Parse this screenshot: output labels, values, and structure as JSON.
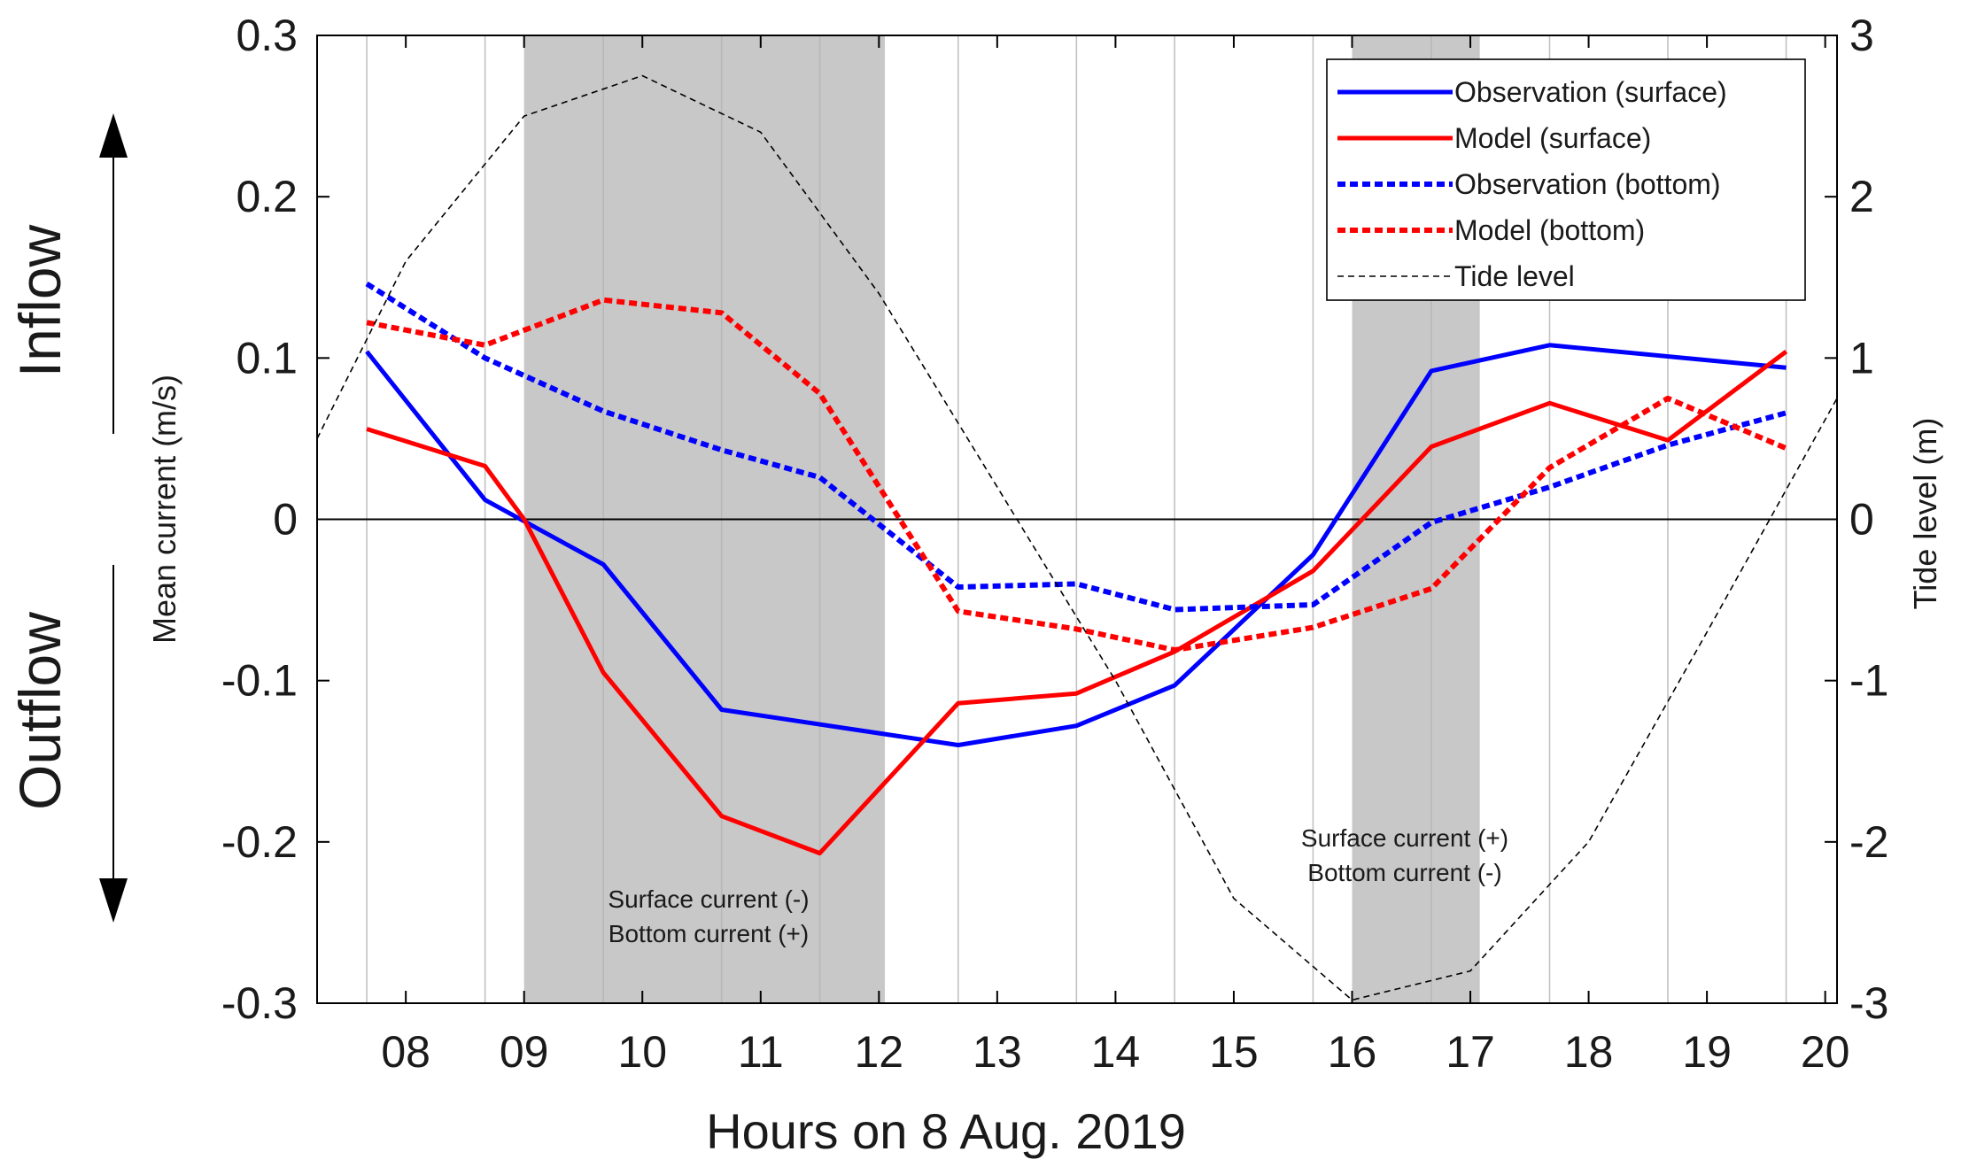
{
  "chart_data": {
    "type": "line",
    "xlabel": "Hours on 8 Aug. 2019",
    "ylabel": "Mean current (m/s)",
    "y2label": "Tide level (m)",
    "xlim": [
      7.25,
      20.1
    ],
    "ylim": [
      -0.3,
      0.3
    ],
    "y2lim": [
      -3,
      3
    ],
    "xticks": [
      8,
      9,
      10,
      11,
      12,
      13,
      14,
      15,
      16,
      17,
      18,
      19,
      20
    ],
    "xtick_labels": [
      "08",
      "09",
      "10",
      "11",
      "12",
      "13",
      "14",
      "15",
      "16",
      "17",
      "18",
      "19",
      "20"
    ],
    "yticks": [
      -0.3,
      -0.2,
      -0.1,
      0,
      0.1,
      0.2,
      0.3
    ],
    "ytick_labels": [
      "-0.3",
      "-0.2",
      "-0.1",
      "0",
      "0.1",
      "0.2",
      "0.3"
    ],
    "y2ticks": [
      -3,
      -2,
      -1,
      0,
      1,
      2,
      3
    ],
    "y2tick_labels": [
      "-3",
      "-2",
      "-1",
      "0",
      "1",
      "2",
      "3"
    ],
    "sample_hours": [
      7.67,
      8.67,
      9.67,
      10.67,
      11.5,
      12.67,
      13.67,
      14.5,
      15.67,
      16.67,
      17.67,
      18.67,
      19.67
    ],
    "series": [
      {
        "name": "Observation (surface)",
        "axis": "left",
        "color": "#0000ff",
        "style": "solid",
        "x": [
          7.67,
          8.67,
          9.67,
          10.67,
          12.67,
          13.67,
          14.5,
          15.67,
          16.67,
          17.67,
          19.67
        ],
        "y": [
          0.104,
          0.012,
          -0.028,
          -0.118,
          -0.14,
          -0.128,
          -0.103,
          -0.022,
          0.092,
          0.108,
          0.094
        ]
      },
      {
        "name": "Model (surface)",
        "axis": "left",
        "color": "#ff0000",
        "style": "solid",
        "x": [
          7.67,
          8.67,
          9,
          9.67,
          10.67,
          11.5,
          12.67,
          13.67,
          14.5,
          15.67,
          16.67,
          17.67,
          18.67,
          19.67
        ],
        "y": [
          0.056,
          0.033,
          0.0,
          -0.095,
          -0.184,
          -0.207,
          -0.114,
          -0.108,
          -0.082,
          -0.032,
          0.045,
          0.072,
          0.049,
          0.104
        ]
      },
      {
        "name": "Observation (bottom)",
        "axis": "left",
        "color": "#0000ff",
        "style": "dotted",
        "x": [
          7.67,
          8.67,
          9.67,
          10.67,
          11.5,
          12.67,
          13.67,
          14.5,
          15.67,
          16.67,
          17.67,
          18.67,
          19.67
        ],
        "y": [
          0.146,
          0.1,
          0.067,
          0.043,
          0.026,
          -0.042,
          -0.04,
          -0.056,
          -0.053,
          -0.002,
          0.02,
          0.046,
          0.066
        ]
      },
      {
        "name": "Model (bottom)",
        "axis": "left",
        "color": "#ff0000",
        "style": "dotted",
        "x": [
          7.67,
          8.67,
          9.67,
          10.67,
          11.5,
          12.67,
          13.67,
          14.5,
          15.67,
          16.67,
          17.67,
          18.67,
          19.67
        ],
        "y": [
          0.122,
          0.108,
          0.136,
          0.128,
          0.078,
          -0.057,
          -0.068,
          -0.081,
          -0.067,
          -0.043,
          0.032,
          0.075,
          0.044
        ]
      },
      {
        "name": "Tide level",
        "axis": "right",
        "color": "#000000",
        "style": "dashed",
        "x": [
          7.25,
          8,
          9,
          10,
          11,
          12,
          13,
          14,
          15,
          16,
          17,
          18,
          19,
          20.1
        ],
        "y": [
          0.5,
          1.6,
          2.5,
          2.75,
          2.4,
          1.4,
          0.2,
          -1.0,
          -2.35,
          -2.98,
          -2.8,
          -2.0,
          -0.7,
          0.75
        ]
      }
    ],
    "shaded_regions": [
      {
        "x0": 9,
        "x1": 12.05,
        "label_lines": [
          "Surface current (-)",
          "Bottom current (+)"
        ]
      },
      {
        "x0": 16,
        "x1": 17.08,
        "label_lines": [
          "Surface current (+)",
          "Bottom current (-)"
        ]
      }
    ],
    "flow_labels": {
      "up": "Inflow",
      "down": "Outflow"
    },
    "legend_position": "top-right",
    "zero_line": true
  }
}
